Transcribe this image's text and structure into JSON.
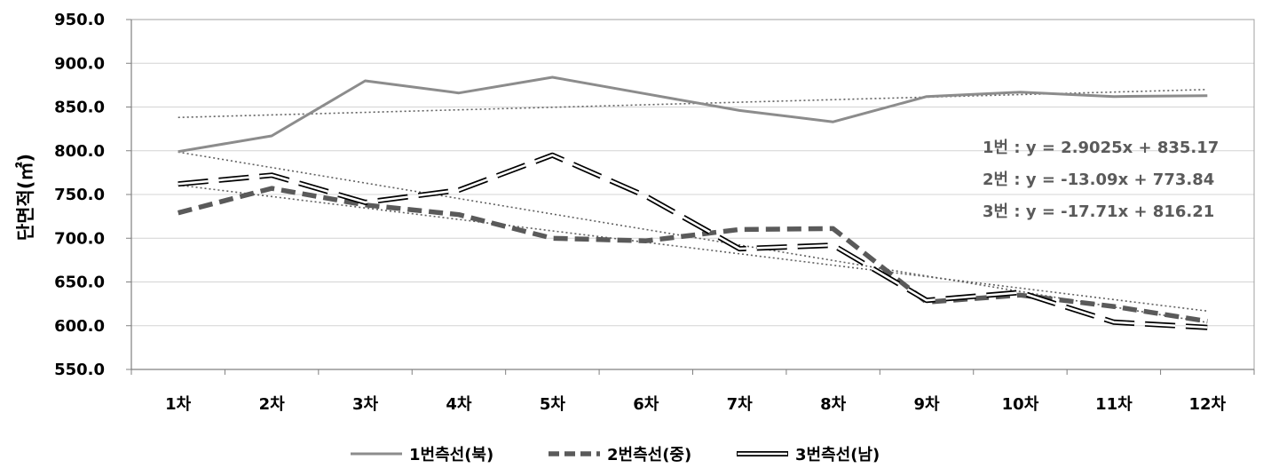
{
  "chart_data": {
    "type": "line",
    "ylabel": "단면적(㎡)",
    "ylim": [
      550,
      950
    ],
    "yticks": [
      "550.0",
      "600.0",
      "650.0",
      "700.0",
      "750.0",
      "800.0",
      "850.0",
      "900.0",
      "950.0"
    ],
    "categories": [
      "1차",
      "2차",
      "3차",
      "4차",
      "5차",
      "6차",
      "7차",
      "8차",
      "9차",
      "10차",
      "11차",
      "12차"
    ],
    "series": [
      {
        "name": "1번측선(북)",
        "color": "#8c8c8c",
        "style": "solid",
        "values": [
          799,
          817,
          880,
          866,
          884,
          865,
          846,
          833,
          862,
          867,
          862,
          863
        ]
      },
      {
        "name": "2번측선(중)",
        "color": "#5a5a5a",
        "style": "dashed",
        "values": [
          729,
          757,
          738,
          727,
          700,
          697,
          710,
          711,
          627,
          635,
          622,
          605
        ]
      },
      {
        "name": "3번측선(남)",
        "color": "#000000",
        "style": "double",
        "values": [
          762,
          772,
          741,
          755,
          795,
          748,
          688,
          692,
          629,
          638,
          604,
          598
        ]
      }
    ],
    "trendlines": [
      {
        "label": "1번 : y = 2.9025x + 835.17",
        "slope": 2.9025,
        "intercept": 835.17
      },
      {
        "label": "2번 : y = -13.09x + 773.84",
        "slope": -13.09,
        "intercept": 773.84
      },
      {
        "label": "3번 : y = -17.71x + 816.21",
        "slope": -17.71,
        "intercept": 816.21
      }
    ],
    "grid": true,
    "legend": "bottom"
  }
}
